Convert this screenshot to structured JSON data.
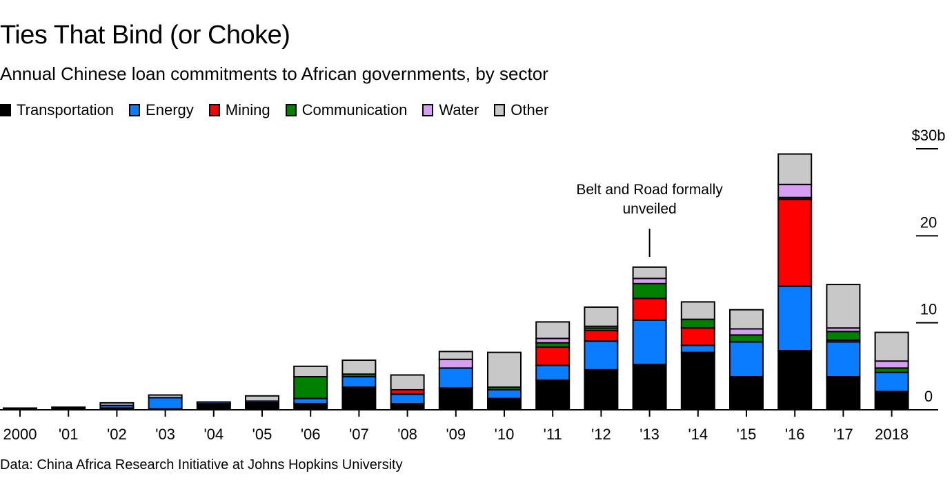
{
  "chart_data": {
    "type": "bar",
    "stacked": true,
    "title": "Ties That Bind (or Choke)",
    "subtitle": "Annual Chinese loan commitments to African governments, by sector",
    "xlabel": "",
    "ylabel": "",
    "ylim": [
      0,
      30
    ],
    "yticks": [
      {
        "value": 0,
        "label": "0"
      },
      {
        "value": 10,
        "label": "10"
      },
      {
        "value": 20,
        "label": "20"
      },
      {
        "value": 30,
        "label": "$30b"
      }
    ],
    "y_axis_position": "right",
    "grid": false,
    "legend_position": "top-left",
    "categories": [
      "2000",
      "'01",
      "'02",
      "'03",
      "'04",
      "'05",
      "'06",
      "'07",
      "'08",
      "'09",
      "'10",
      "'11",
      "'12",
      "'13",
      "'14",
      "'15",
      "'16",
      "'17",
      "2018"
    ],
    "series": [
      {
        "name": "Transportation",
        "color": "#000000",
        "values": [
          0.2,
          0.3,
          0.2,
          0.1,
          0.7,
          0.8,
          0.7,
          2.6,
          0.7,
          2.5,
          1.3,
          3.4,
          4.6,
          5.2,
          6.6,
          3.8,
          6.8,
          3.8,
          2.1
        ]
      },
      {
        "name": "Energy",
        "color": "#0a7cff",
        "values": [
          0,
          0,
          0.3,
          1.3,
          0.2,
          0.2,
          0.6,
          1.2,
          1.1,
          2.3,
          1.0,
          1.7,
          3.3,
          5.1,
          0.8,
          4.0,
          7.4,
          4.0,
          2.2
        ]
      },
      {
        "name": "Mining",
        "color": "#ff0000",
        "values": [
          0,
          0,
          0,
          0,
          0,
          0,
          0,
          0,
          0.5,
          0,
          0,
          2.1,
          1.2,
          2.5,
          2.0,
          0,
          10.0,
          0.2,
          0
        ]
      },
      {
        "name": "Communication",
        "color": "#008000",
        "values": [
          0,
          0,
          0,
          0,
          0,
          0,
          2.5,
          0.3,
          0,
          0,
          0.3,
          0.5,
          0.3,
          1.7,
          1.0,
          0.8,
          0.2,
          1.0,
          0.5
        ]
      },
      {
        "name": "Water",
        "color": "#d89ef2",
        "values": [
          0,
          0,
          0,
          0,
          0,
          0,
          0,
          0,
          0,
          1.0,
          0,
          0.5,
          0.2,
          0.6,
          0,
          0.7,
          1.5,
          0.4,
          0.8
        ]
      },
      {
        "name": "Other",
        "color": "#c8c8c8",
        "values": [
          0,
          0,
          0.3,
          0.3,
          0,
          0.6,
          1.2,
          1.6,
          1.7,
          0.9,
          4.0,
          1.9,
          2.2,
          1.3,
          2.0,
          2.2,
          3.5,
          5.0,
          3.3
        ]
      }
    ],
    "annotations": [
      {
        "text_lines": [
          "Belt and Road formally",
          "unveiled"
        ],
        "category": "'13"
      }
    ],
    "source": "Data: China Africa Research Initiative at Johns Hopkins University"
  }
}
